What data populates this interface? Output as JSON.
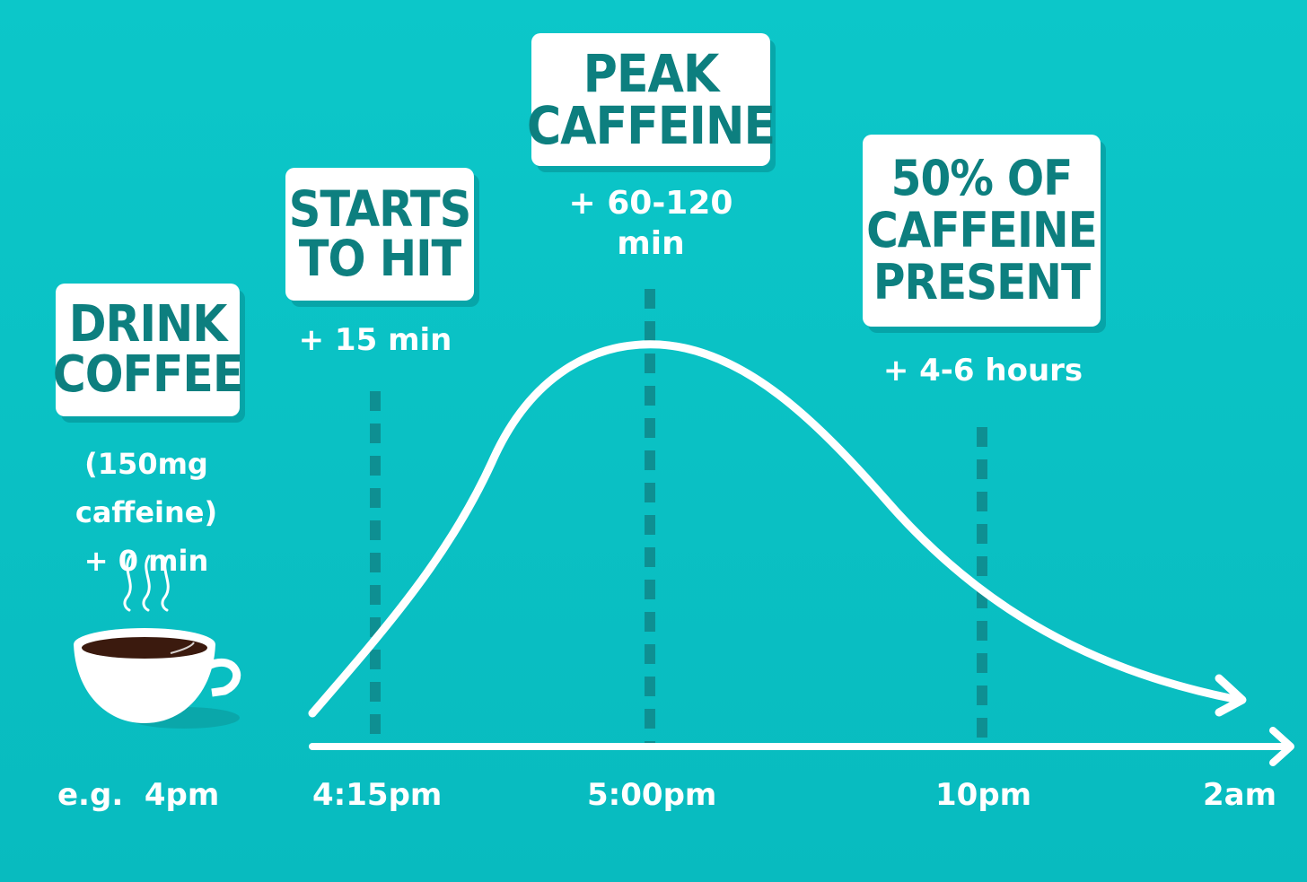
{
  "colors": {
    "background": "#0cc7c9",
    "card_text": "#0d7f7f",
    "white": "#ffffff",
    "dashed_line": "#0e8f92",
    "coffee": "#3b1a0e"
  },
  "stages": [
    {
      "title": "DRINK\nCOFFEE",
      "note": "(150mg caffeine)\n+ 0 min"
    },
    {
      "title": "STARTS\nTO HIT",
      "note": "+ 15 min"
    },
    {
      "title": "PEAK\nCAFFEINE",
      "note": "+ 60-120\nmin"
    },
    {
      "title": "50% OF\nCAFFEINE\nPRESENT",
      "note": "+ 4-6 hours"
    }
  ],
  "timeline": {
    "labels": [
      "e.g.  4pm",
      "4:15pm",
      "5:00pm",
      "10pm",
      "2am"
    ]
  },
  "icons": {
    "coffee_cup": "coffee-cup-icon",
    "steam": "steam-icon",
    "axis_arrow": "arrow-right-icon",
    "curve_arrow": "arrowhead-icon"
  }
}
